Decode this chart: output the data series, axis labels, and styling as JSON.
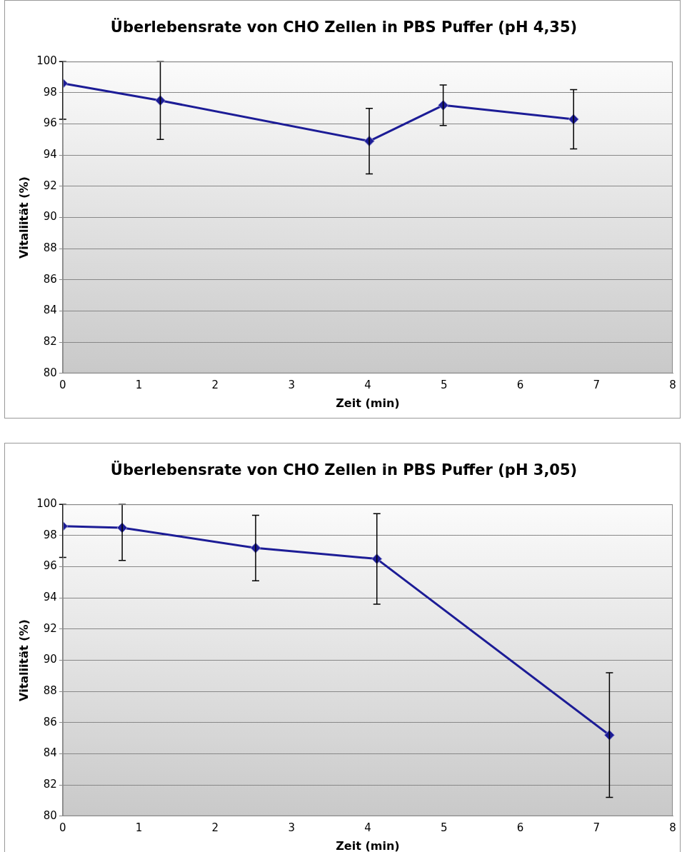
{
  "chart_data": [
    {
      "type": "line",
      "title": "Überlebensrate von CHO Zellen in PBS Puffer (pH 4,35)",
      "xlabel": "Zeit (min)",
      "ylabel": "Vitaliität (%)",
      "x": [
        0,
        1.28,
        4.02,
        4.99,
        6.7
      ],
      "series": [
        {
          "color": "#1c1c96",
          "values": [
            98.6,
            97.5,
            94.9,
            97.2,
            96.3
          ],
          "errors": [
            [
              96.3,
              100
            ],
            [
              95.0,
              100
            ],
            [
              92.8,
              97.0
            ],
            [
              95.9,
              98.5
            ],
            [
              94.4,
              98.2
            ]
          ]
        }
      ],
      "xlim": [
        0,
        8
      ],
      "xticks": [
        0,
        1,
        2,
        3,
        4,
        5,
        6,
        7,
        8
      ],
      "ylim": [
        80,
        100
      ],
      "yticks": [
        80,
        82,
        84,
        86,
        88,
        90,
        92,
        94,
        96,
        98,
        100
      ],
      "grid": "y",
      "legend": false,
      "marker": "diamond",
      "line_style": "solid"
    },
    {
      "type": "line",
      "title": "Überlebensrate von CHO Zellen in PBS Puffer (pH 3,05)",
      "xlabel": "Zeit (min)",
      "ylabel": "Vitaliität (%)",
      "x": [
        0,
        0.78,
        2.53,
        4.12,
        7.17
      ],
      "series": [
        {
          "color": "#1c1c96",
          "values": [
            98.6,
            98.5,
            97.2,
            96.5,
            85.2
          ],
          "errors": [
            [
              96.6,
              100
            ],
            [
              96.4,
              100
            ],
            [
              95.1,
              99.3
            ],
            [
              93.6,
              99.4
            ],
            [
              81.2,
              89.2
            ]
          ]
        }
      ],
      "xlim": [
        0,
        8
      ],
      "xticks": [
        0,
        1,
        2,
        3,
        4,
        5,
        6,
        7,
        8
      ],
      "ylim": [
        80,
        100
      ],
      "yticks": [
        80,
        82,
        84,
        86,
        88,
        90,
        92,
        94,
        96,
        98,
        100
      ],
      "grid": "y",
      "legend": false,
      "marker": "diamond",
      "line_style": "solid"
    }
  ]
}
